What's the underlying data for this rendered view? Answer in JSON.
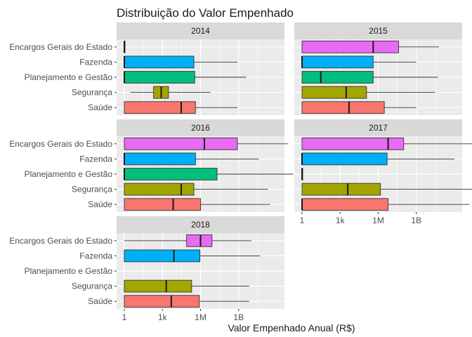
{
  "chart_data": {
    "type": "boxplot",
    "orientation": "horizontal",
    "title": "Distribuição do Valor Empenhado",
    "xlabel": "Valor Empenhado Anual (R$)",
    "ylabel": "",
    "x_scale": "log10",
    "xlim": [
      1,
      1000000000000
    ],
    "x_ticks": [
      {
        "value": 1,
        "label": "1"
      },
      {
        "value": 1000,
        "label": "1k"
      },
      {
        "value": 1000000,
        "label": "1M"
      },
      {
        "value": 1000000000,
        "label": "1B"
      }
    ],
    "grid": true,
    "legend": "none",
    "categories": [
      "Encargos Gerais do Estado",
      "Fazenda",
      "Planejamento e Gestão",
      "Segurança",
      "Saúde"
    ],
    "colors": {
      "Encargos Gerais do Estado": "#E76BF3",
      "Fazenda": "#00B0F6",
      "Planejamento e Gestão": "#00BF7D",
      "Segurança": "#A3A500",
      "Saúde": "#F8766D"
    },
    "facets": [
      {
        "label": "2014",
        "boxes": [
          {
            "category": "Encargos Gerais do Estado",
            "min": 1,
            "q1": 1,
            "median": 1,
            "q3": 1,
            "max": 1
          },
          {
            "category": "Fazenda",
            "min": 1,
            "q1": 1,
            "median": 1,
            "q3": 300000,
            "max": 800000000
          },
          {
            "category": "Planejamento e Gestão",
            "min": 1,
            "q1": 1,
            "median": 1,
            "q3": 350000,
            "max": 4000000000
          },
          {
            "category": "Segurança",
            "min": 3,
            "q1": 200,
            "median": 800,
            "q3": 3000,
            "max": 6000000
          },
          {
            "category": "Saúde",
            "min": 1,
            "q1": 1,
            "median": 30000,
            "q3": 400000,
            "max": 800000000
          }
        ]
      },
      {
        "label": "2015",
        "boxes": [
          {
            "category": "Encargos Gerais do Estado",
            "min": 1,
            "q1": 1,
            "median": 400000,
            "q3": 40000000,
            "max": 60000000000
          },
          {
            "category": "Fazenda",
            "min": 1,
            "q1": 1,
            "median": 1,
            "q3": 400000,
            "max": 1000000000
          },
          {
            "category": "Planejamento e Gestão",
            "min": 1,
            "q1": 1,
            "median": 30,
            "q3": 400000,
            "max": 50000000000
          },
          {
            "category": "Segurança",
            "min": 1,
            "q1": 1,
            "median": 3000,
            "q3": 120000,
            "max": 30000000000
          },
          {
            "category": "Saúde",
            "min": 1,
            "q1": 1,
            "median": 5000,
            "q3": 3000000,
            "max": 1000000000
          }
        ]
      },
      {
        "label": "2016",
        "boxes": [
          {
            "category": "Encargos Gerais do Estado",
            "min": 1,
            "q1": 1,
            "median": 2000000,
            "q3": 800000000,
            "max": 8000000000000
          },
          {
            "category": "Fazenda",
            "min": 1,
            "q1": 1,
            "median": 1,
            "q3": 400000,
            "max": 40000000000
          },
          {
            "category": "Planejamento e Gestão",
            "min": 1,
            "q1": 1,
            "median": 1,
            "q3": 20000000,
            "max": 20000000000000
          },
          {
            "category": "Segurança",
            "min": 1,
            "q1": 1,
            "median": 30000,
            "q3": 300000,
            "max": 200000000000
          },
          {
            "category": "Saúde",
            "min": 1,
            "q1": 1,
            "median": 7000,
            "q3": 1000000,
            "max": 300000000000
          }
        ]
      },
      {
        "label": "2017",
        "boxes": [
          {
            "category": "Encargos Gerais do Estado",
            "min": 1,
            "q1": 1,
            "median": 6000000,
            "q3": 100000000,
            "max": 30000000000000
          },
          {
            "category": "Fazenda",
            "min": 1,
            "q1": 1,
            "median": 1,
            "q3": 5000000,
            "max": 1000000000000
          },
          {
            "category": "Planejamento e Gestão",
            "min": 1,
            "q1": 1,
            "median": 1,
            "q3": 1,
            "max": 1
          },
          {
            "category": "Segurança",
            "min": 1,
            "q1": 1,
            "median": 4000,
            "q3": 1500000,
            "max": 100000000000000
          },
          {
            "category": "Saúde",
            "min": 1,
            "q1": 1,
            "median": 1,
            "q3": 6000000,
            "max": 15000000000000
          }
        ]
      },
      {
        "label": "2018",
        "boxes": [
          {
            "category": "Encargos Gerais do Estado",
            "min": 1,
            "q1": 80000,
            "median": 1000000,
            "q3": 8000000,
            "max": 10000000000
          },
          {
            "category": "Fazenda",
            "min": 1,
            "q1": 1,
            "median": 8000,
            "q3": 900000,
            "max": 50000000000
          },
          {
            "category": "Segurança",
            "min": 1,
            "q1": 1,
            "median": 2000,
            "q3": 200000,
            "max": 7000000000
          },
          {
            "category": "Saúde",
            "min": 1,
            "q1": 1,
            "median": 5000,
            "q3": 800000,
            "max": 7000000000
          }
        ]
      }
    ]
  }
}
